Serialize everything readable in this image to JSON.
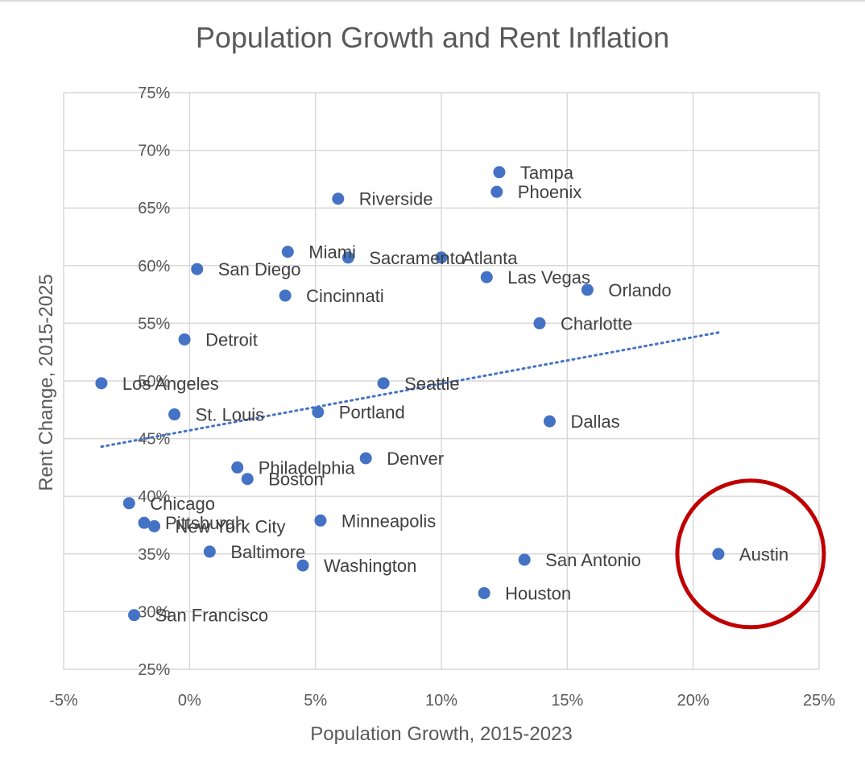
{
  "chart_data": {
    "type": "scatter",
    "title": "Population Growth and Rent Inflation",
    "xlabel": "Population Growth, 2015-2023",
    "ylabel": "Rent Change, 2015-2025",
    "xlim": [
      -5,
      25
    ],
    "ylim": [
      25,
      75
    ],
    "x_ticks": [
      -5,
      0,
      5,
      10,
      15,
      20,
      25
    ],
    "y_ticks": [
      25,
      30,
      35,
      40,
      45,
      50,
      55,
      60,
      65,
      70,
      75
    ],
    "x_tick_labels": [
      "-5%",
      "0%",
      "5%",
      "10%",
      "15%",
      "20%",
      "25%"
    ],
    "y_tick_labels": [
      "25%",
      "30%",
      "35%",
      "40%",
      "45%",
      "50%",
      "55%",
      "60%",
      "65%",
      "70%",
      "75%"
    ],
    "grid": true,
    "marker_color": "#4472c4",
    "points": [
      {
        "label": "Tampa",
        "x": 12.3,
        "y": 68.1
      },
      {
        "label": "Phoenix",
        "x": 12.2,
        "y": 66.4
      },
      {
        "label": "Riverside",
        "x": 5.9,
        "y": 65.8
      },
      {
        "label": "Miami",
        "x": 3.9,
        "y": 61.2
      },
      {
        "label": "Sacramento",
        "x": 6.3,
        "y": 60.7
      },
      {
        "label": "Atlanta",
        "x": 10.0,
        "y": 60.7
      },
      {
        "label": "San Diego",
        "x": 0.3,
        "y": 59.7
      },
      {
        "label": "Las Vegas",
        "x": 11.8,
        "y": 59.0
      },
      {
        "label": "Orlando",
        "x": 15.8,
        "y": 57.9
      },
      {
        "label": "Cincinnati",
        "x": 3.8,
        "y": 57.4
      },
      {
        "label": "Charlotte",
        "x": 13.9,
        "y": 55.0
      },
      {
        "label": "Detroit",
        "x": -0.2,
        "y": 53.6
      },
      {
        "label": "Los Angeles",
        "x": -3.5,
        "y": 49.8
      },
      {
        "label": "Seattle",
        "x": 7.7,
        "y": 49.8
      },
      {
        "label": "St. Louis",
        "x": -0.6,
        "y": 47.1
      },
      {
        "label": "Portland",
        "x": 5.1,
        "y": 47.3
      },
      {
        "label": "Dallas",
        "x": 14.3,
        "y": 46.5
      },
      {
        "label": "Denver",
        "x": 7.0,
        "y": 43.3
      },
      {
        "label": "Philadelphia",
        "x": 1.9,
        "y": 42.5
      },
      {
        "label": "Boston",
        "x": 2.3,
        "y": 41.5
      },
      {
        "label": "Chicago",
        "x": -2.4,
        "y": 39.4
      },
      {
        "label": "Minneapolis",
        "x": 5.2,
        "y": 37.9
      },
      {
        "label": "Pittsburgh",
        "x": -1.8,
        "y": 37.7
      },
      {
        "label": "New York City",
        "x": -1.4,
        "y": 37.4
      },
      {
        "label": "Baltimore",
        "x": 0.8,
        "y": 35.2
      },
      {
        "label": "Austin",
        "x": 21.0,
        "y": 35.0
      },
      {
        "label": "San Antonio",
        "x": 13.3,
        "y": 34.5
      },
      {
        "label": "Washington",
        "x": 4.5,
        "y": 34.0
      },
      {
        "label": "Houston",
        "x": 11.7,
        "y": 31.6
      },
      {
        "label": "San Francisco",
        "x": -2.2,
        "y": 29.7
      }
    ],
    "trendline": {
      "style": "dotted",
      "color": "#4472c4",
      "from": [
        -3.5,
        44.3
      ],
      "to": [
        21.0,
        54.2
      ]
    },
    "annotation": {
      "type": "circle",
      "target": "Austin",
      "color": "#c00000"
    }
  }
}
